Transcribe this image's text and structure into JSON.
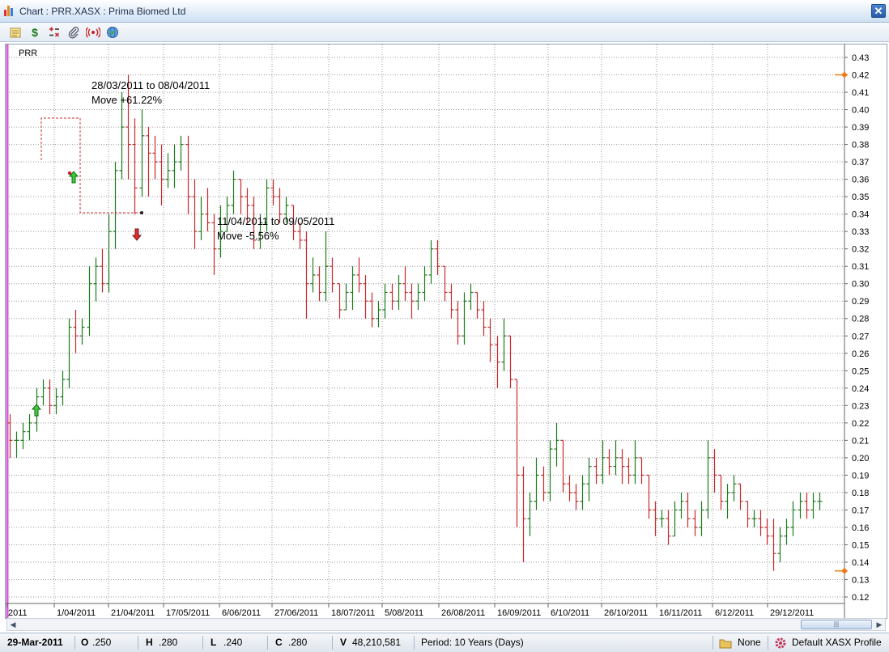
{
  "window": {
    "title": "Chart : PRR.XASX : Prima Biomed Ltd",
    "close_label": "✕"
  },
  "toolbar": {
    "icons": [
      "notes-icon",
      "dollar-icon",
      "calculator-icon",
      "paperclip-icon",
      "broadcast-icon",
      "globe-icon"
    ],
    "dollar_label": "$"
  },
  "chart": {
    "symbol": "PRR",
    "annotations": [
      {
        "line1": "28/03/2011 to 08/04/2011",
        "line2": "Move +61.22%"
      },
      {
        "line1": "11/04/2011 to 09/05/2011",
        "line2": "Move -5.56%"
      }
    ],
    "x_labels": [
      "2011",
      "1/04/2011",
      "21/04/2011",
      "17/05/2011",
      "6/06/2011",
      "27/06/2011",
      "18/07/2011",
      "5/08/2011",
      "26/08/2011",
      "16/09/2011",
      "6/10/2011",
      "26/10/2011",
      "16/11/2011",
      "6/12/2011",
      "29/12/2011"
    ],
    "y_labels": [
      "0.43",
      "0.42",
      "0.41",
      "0.40",
      "0.39",
      "0.38",
      "0.37",
      "0.36",
      "0.35",
      "0.34",
      "0.33",
      "0.32",
      "0.31",
      "0.30",
      "0.29",
      "0.28",
      "0.27",
      "0.26",
      "0.25",
      "0.24",
      "0.23",
      "0.22",
      "0.21",
      "0.20",
      "0.19",
      "0.18",
      "0.17",
      "0.16",
      "0.15",
      "0.14",
      "0.13",
      "0.12"
    ]
  },
  "chart_data": {
    "type": "ohlc",
    "ylim": [
      0.115,
      0.435
    ],
    "up_color": "#1e7a1e",
    "down_color": "#c8282c",
    "right_markers": [
      0.42,
      0.135
    ],
    "bars": [
      [
        0.22,
        0.225,
        0.2,
        0.21
      ],
      [
        0.21,
        0.215,
        0.2,
        0.21
      ],
      [
        0.21,
        0.22,
        0.205,
        0.215
      ],
      [
        0.215,
        0.225,
        0.21,
        0.22
      ],
      [
        0.22,
        0.24,
        0.215,
        0.235
      ],
      [
        0.235,
        0.245,
        0.23,
        0.24
      ],
      [
        0.24,
        0.245,
        0.225,
        0.23
      ],
      [
        0.23,
        0.24,
        0.225,
        0.235
      ],
      [
        0.235,
        0.25,
        0.23,
        0.245
      ],
      [
        0.245,
        0.28,
        0.24,
        0.275
      ],
      [
        0.275,
        0.285,
        0.26,
        0.27
      ],
      [
        0.27,
        0.28,
        0.265,
        0.275
      ],
      [
        0.275,
        0.31,
        0.27,
        0.3
      ],
      [
        0.3,
        0.315,
        0.29,
        0.31
      ],
      [
        0.31,
        0.32,
        0.295,
        0.3
      ],
      [
        0.3,
        0.34,
        0.295,
        0.33
      ],
      [
        0.33,
        0.37,
        0.32,
        0.365
      ],
      [
        0.365,
        0.41,
        0.36,
        0.39
      ],
      [
        0.39,
        0.42,
        0.36,
        0.38
      ],
      [
        0.38,
        0.395,
        0.34,
        0.355
      ],
      [
        0.355,
        0.4,
        0.35,
        0.385
      ],
      [
        0.385,
        0.39,
        0.35,
        0.375
      ],
      [
        0.375,
        0.385,
        0.36,
        0.37
      ],
      [
        0.37,
        0.38,
        0.345,
        0.36
      ],
      [
        0.36,
        0.375,
        0.355,
        0.365
      ],
      [
        0.365,
        0.38,
        0.355,
        0.37
      ],
      [
        0.37,
        0.385,
        0.365,
        0.38
      ],
      [
        0.38,
        0.385,
        0.34,
        0.35
      ],
      [
        0.35,
        0.36,
        0.32,
        0.33
      ],
      [
        0.33,
        0.35,
        0.325,
        0.34
      ],
      [
        0.34,
        0.355,
        0.33,
        0.335
      ],
      [
        0.335,
        0.34,
        0.305,
        0.32
      ],
      [
        0.32,
        0.345,
        0.315,
        0.33
      ],
      [
        0.33,
        0.35,
        0.33,
        0.345
      ],
      [
        0.345,
        0.365,
        0.34,
        0.36
      ],
      [
        0.36,
        0.36,
        0.34,
        0.35
      ],
      [
        0.35,
        0.355,
        0.335,
        0.345
      ],
      [
        0.345,
        0.35,
        0.32,
        0.325
      ],
      [
        0.325,
        0.34,
        0.32,
        0.335
      ],
      [
        0.335,
        0.36,
        0.33,
        0.355
      ],
      [
        0.355,
        0.36,
        0.345,
        0.35
      ],
      [
        0.35,
        0.355,
        0.335,
        0.34
      ],
      [
        0.34,
        0.35,
        0.335,
        0.345
      ],
      [
        0.345,
        0.345,
        0.325,
        0.33
      ],
      [
        0.33,
        0.335,
        0.32,
        0.325
      ],
      [
        0.325,
        0.33,
        0.28,
        0.3
      ],
      [
        0.3,
        0.315,
        0.295,
        0.305
      ],
      [
        0.305,
        0.31,
        0.29,
        0.295
      ],
      [
        0.295,
        0.33,
        0.29,
        0.31
      ],
      [
        0.31,
        0.315,
        0.295,
        0.3
      ],
      [
        0.3,
        0.3,
        0.28,
        0.285
      ],
      [
        0.285,
        0.3,
        0.285,
        0.295
      ],
      [
        0.295,
        0.31,
        0.285,
        0.305
      ],
      [
        0.305,
        0.315,
        0.295,
        0.3
      ],
      [
        0.3,
        0.305,
        0.28,
        0.29
      ],
      [
        0.29,
        0.295,
        0.275,
        0.28
      ],
      [
        0.28,
        0.29,
        0.275,
        0.285
      ],
      [
        0.285,
        0.3,
        0.28,
        0.295
      ],
      [
        0.295,
        0.3,
        0.285,
        0.29
      ],
      [
        0.29,
        0.305,
        0.285,
        0.3
      ],
      [
        0.3,
        0.31,
        0.29,
        0.295
      ],
      [
        0.295,
        0.3,
        0.28,
        0.29
      ],
      [
        0.29,
        0.3,
        0.285,
        0.295
      ],
      [
        0.295,
        0.31,
        0.29,
        0.305
      ],
      [
        0.305,
        0.325,
        0.3,
        0.32
      ],
      [
        0.32,
        0.325,
        0.305,
        0.31
      ],
      [
        0.31,
        0.31,
        0.29,
        0.295
      ],
      [
        0.295,
        0.3,
        0.28,
        0.285
      ],
      [
        0.285,
        0.29,
        0.265,
        0.27
      ],
      [
        0.27,
        0.295,
        0.265,
        0.29
      ],
      [
        0.29,
        0.3,
        0.285,
        0.295
      ],
      [
        0.295,
        0.295,
        0.28,
        0.285
      ],
      [
        0.285,
        0.29,
        0.27,
        0.275
      ],
      [
        0.275,
        0.28,
        0.255,
        0.265
      ],
      [
        0.265,
        0.27,
        0.24,
        0.255
      ],
      [
        0.255,
        0.28,
        0.25,
        0.27
      ],
      [
        0.27,
        0.27,
        0.24,
        0.245
      ],
      [
        0.245,
        0.245,
        0.16,
        0.19
      ],
      [
        0.19,
        0.195,
        0.14,
        0.165
      ],
      [
        0.165,
        0.18,
        0.155,
        0.175
      ],
      [
        0.175,
        0.2,
        0.17,
        0.19
      ],
      [
        0.19,
        0.195,
        0.175,
        0.18
      ],
      [
        0.18,
        0.21,
        0.175,
        0.205
      ],
      [
        0.205,
        0.22,
        0.195,
        0.21
      ],
      [
        0.21,
        0.21,
        0.18,
        0.185
      ],
      [
        0.185,
        0.19,
        0.175,
        0.18
      ],
      [
        0.18,
        0.185,
        0.17,
        0.175
      ],
      [
        0.175,
        0.19,
        0.17,
        0.185
      ],
      [
        0.185,
        0.2,
        0.175,
        0.195
      ],
      [
        0.195,
        0.2,
        0.185,
        0.19
      ],
      [
        0.19,
        0.21,
        0.185,
        0.2
      ],
      [
        0.2,
        0.205,
        0.19,
        0.195
      ],
      [
        0.195,
        0.21,
        0.19,
        0.2
      ],
      [
        0.2,
        0.205,
        0.185,
        0.195
      ],
      [
        0.195,
        0.2,
        0.185,
        0.19
      ],
      [
        0.19,
        0.21,
        0.185,
        0.2
      ],
      [
        0.2,
        0.2,
        0.185,
        0.19
      ],
      [
        0.19,
        0.19,
        0.165,
        0.17
      ],
      [
        0.17,
        0.175,
        0.155,
        0.165
      ],
      [
        0.165,
        0.17,
        0.16,
        0.165
      ],
      [
        0.165,
        0.17,
        0.15,
        0.155
      ],
      [
        0.155,
        0.175,
        0.155,
        0.17
      ],
      [
        0.17,
        0.18,
        0.165,
        0.175
      ],
      [
        0.175,
        0.18,
        0.16,
        0.165
      ],
      [
        0.165,
        0.17,
        0.155,
        0.16
      ],
      [
        0.16,
        0.175,
        0.155,
        0.17
      ],
      [
        0.17,
        0.21,
        0.165,
        0.2
      ],
      [
        0.2,
        0.205,
        0.18,
        0.19
      ],
      [
        0.19,
        0.19,
        0.17,
        0.175
      ],
      [
        0.175,
        0.185,
        0.165,
        0.18
      ],
      [
        0.18,
        0.19,
        0.175,
        0.185
      ],
      [
        0.185,
        0.185,
        0.17,
        0.175
      ],
      [
        0.175,
        0.175,
        0.16,
        0.165
      ],
      [
        0.165,
        0.17,
        0.16,
        0.165
      ],
      [
        0.165,
        0.17,
        0.155,
        0.16
      ],
      [
        0.16,
        0.165,
        0.15,
        0.155
      ],
      [
        0.155,
        0.165,
        0.135,
        0.145
      ],
      [
        0.145,
        0.16,
        0.14,
        0.155
      ],
      [
        0.155,
        0.165,
        0.15,
        0.16
      ],
      [
        0.16,
        0.175,
        0.155,
        0.17
      ],
      [
        0.17,
        0.18,
        0.165,
        0.175
      ],
      [
        0.175,
        0.18,
        0.165,
        0.17
      ],
      [
        0.17,
        0.18,
        0.165,
        0.175
      ],
      [
        0.175,
        0.18,
        0.17,
        0.175
      ]
    ]
  },
  "scrollbar": {
    "left_arrow": "◀",
    "right_arrow": "▶",
    "thumb_grip": "|||"
  },
  "status": {
    "date": "29-Mar-2011",
    "open_label": "O",
    "open_value": ".250",
    "high_label": "H",
    "high_value": ".280",
    "low_label": "L",
    "low_value": ".240",
    "close_label": "C",
    "close_value": ".280",
    "volume_label": "V",
    "volume_value": "48,210,581",
    "period": "Period: 10 Years (Days)",
    "none_label": "None",
    "profile_label": "Default XASX Profile"
  }
}
